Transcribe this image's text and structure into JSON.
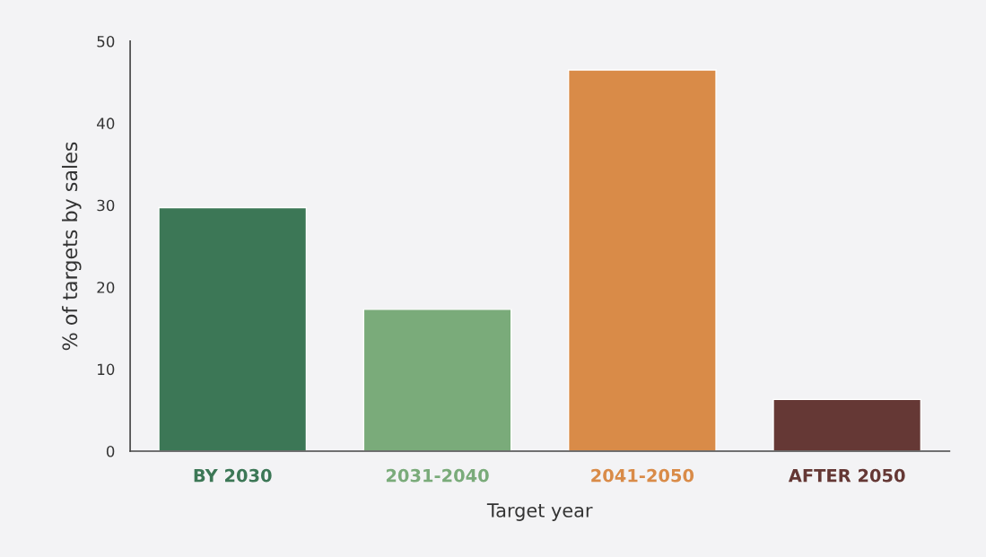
{
  "chart_data": {
    "type": "bar",
    "xlabel": "Target year",
    "ylabel": "% of targets by sales",
    "categories": [
      "BY 2030",
      "2031-2040",
      "2041-2050",
      "AFTER 2050"
    ],
    "values": [
      29.7,
      17.3,
      46.5,
      6.3
    ],
    "colors": [
      "#3c7756",
      "#7aab7a",
      "#d98b48",
      "#653835"
    ],
    "ylim": [
      0,
      50
    ],
    "yticks": [
      0,
      10,
      20,
      30,
      40,
      50
    ],
    "grid": false
  }
}
